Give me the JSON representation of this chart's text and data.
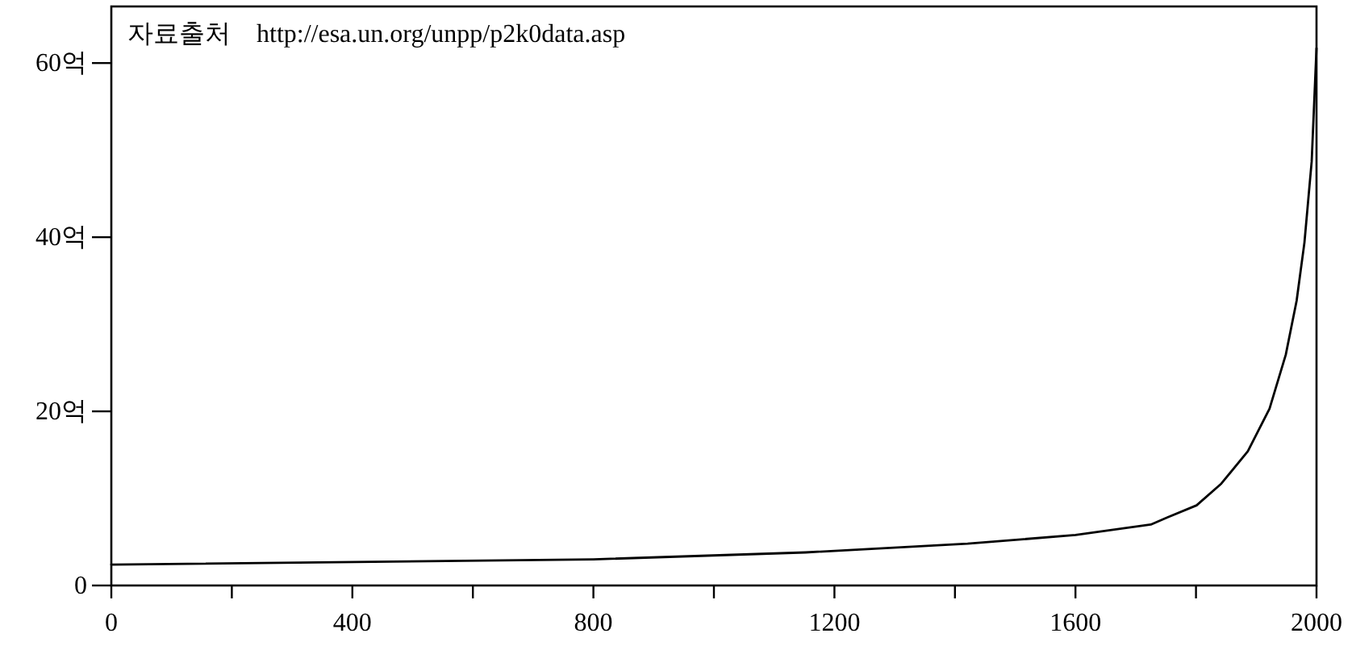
{
  "chart_data": {
    "type": "line",
    "x": [
      0,
      800,
      1152,
      1421,
      1600,
      1725,
      1752,
      1801,
      1842,
      1886,
      1922,
      1949,
      1967,
      1980,
      1992,
      2000
    ],
    "series": [
      {
        "color": "#000000",
        "values": [
          2.4,
          3.0,
          3.8,
          4.8,
          5.8,
          7.0,
          7.8,
          9.2,
          11.7,
          15.4,
          20.3,
          26.5,
          32.7,
          39.4,
          48.7,
          61.7
        ]
      }
    ],
    "xlim": [
      0,
      2000
    ],
    "xticks": [
      0,
      {
        "value": 200,
        "label": null
      },
      400,
      {
        "value": 600,
        "label": null
      },
      800,
      {
        "value": 1000,
        "label": null
      },
      1200,
      {
        "value": 1400,
        "label": null
      },
      1600,
      {
        "value": 1800,
        "label": null
      },
      2000
    ],
    "ylim": [
      0,
      66.5
    ],
    "yticks": [
      0,
      {
        "value": 20,
        "label": "20억"
      },
      {
        "value": 40,
        "label": "40억"
      },
      {
        "value": 60,
        "label": "60억"
      }
    ],
    "grid": false,
    "marker": "none",
    "line_style": "solid",
    "annotations": [
      "자료출처　http://esa.un.org/unpp/p2k0data.asp"
    ]
  }
}
